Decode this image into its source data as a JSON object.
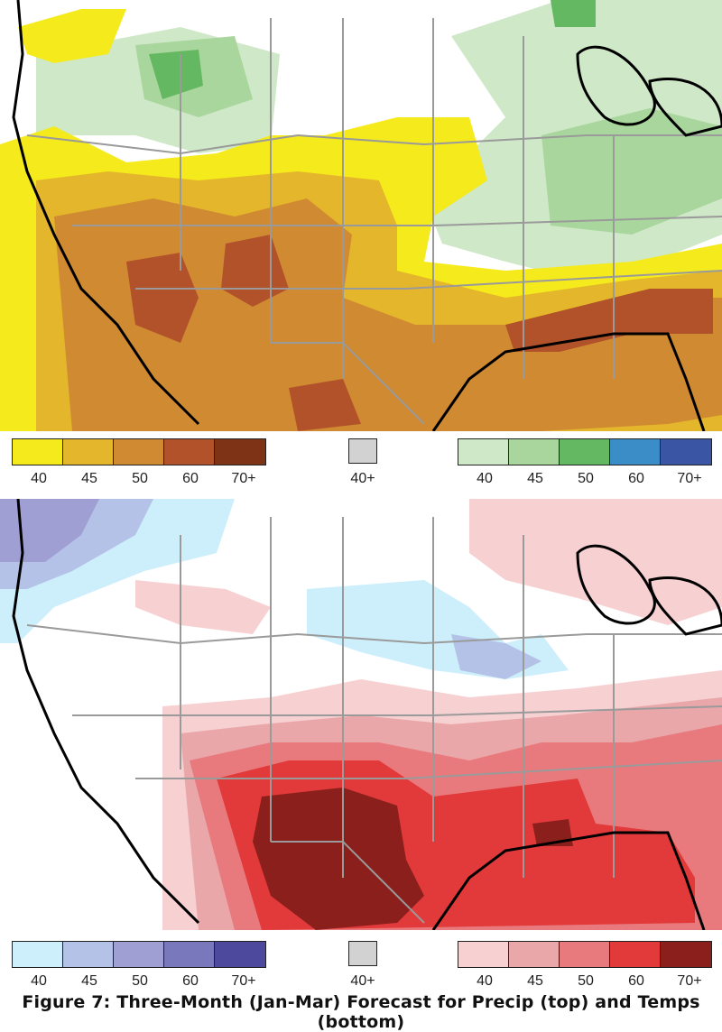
{
  "caption": "Figure 7: Three-Month (Jan-Mar) Forecast for Precip (top) and Temps (bottom)",
  "colors": {
    "border": "#9a9a9a",
    "coast": "#000000",
    "ocean": "#ffffff",
    "precip_below": [
      "#f5ea1b",
      "#e4b62c",
      "#d08a32",
      "#b2522a",
      "#7e3317"
    ],
    "precip_above": [
      "#cfe8c8",
      "#a9d69c",
      "#64b862",
      "#3b8dc8",
      "#3b55a5"
    ],
    "temp_below": [
      "#cdeefb",
      "#b3c2e6",
      "#9f9fd4",
      "#7a78bd",
      "#4d4a9e"
    ],
    "temp_above": [
      "#f7d0d2",
      "#eaa7aa",
      "#e87a7e",
      "#e23a3a",
      "#8a1f1c"
    ],
    "equal_chances": "#d2d2d2"
  },
  "legend_labels": [
    "40",
    "45",
    "50",
    "60",
    "70+"
  ],
  "ec_label": "40+"
}
